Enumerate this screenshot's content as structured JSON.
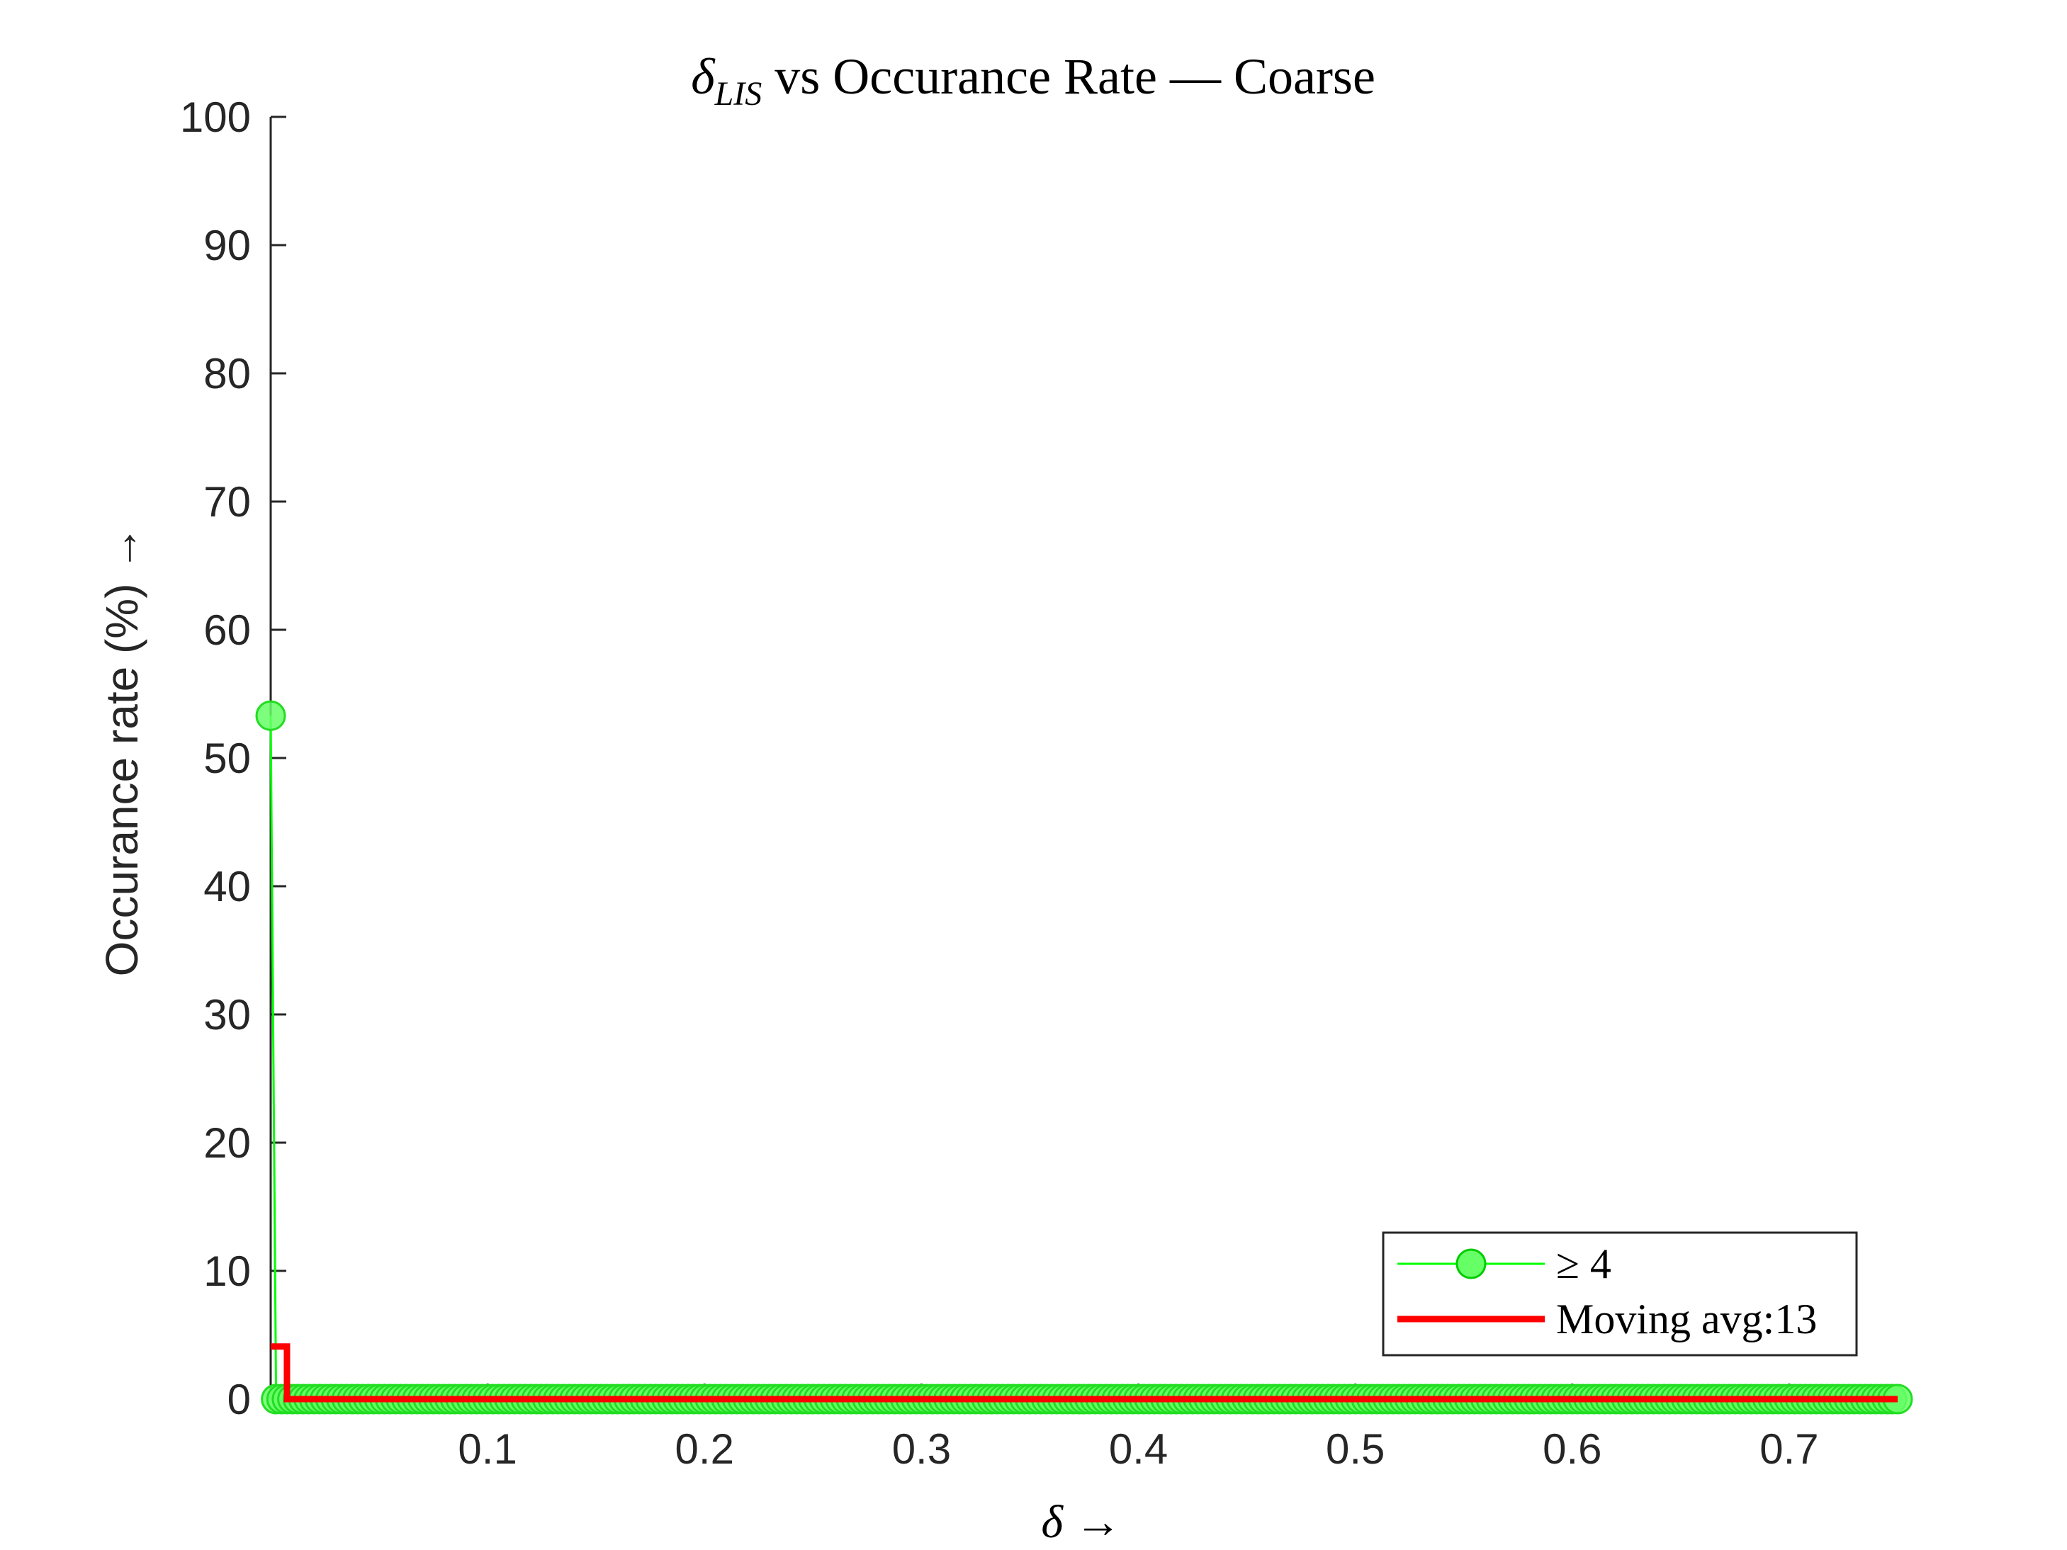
{
  "chart_data": {
    "type": "line",
    "title": {
      "symbol": "δ",
      "subscript": "LIS",
      "rest": " vs Occurance Rate — Coarse"
    },
    "xlabel": "δ →",
    "ylabel": "Occurance rate (%) →",
    "xlim": [
      0,
      0.75
    ],
    "ylim": [
      0,
      100
    ],
    "xticks": [
      0.1,
      0.2,
      0.3,
      0.4,
      0.5,
      0.6,
      0.7
    ],
    "xtick_labels": [
      "0.1",
      "0.2",
      "0.3",
      "0.4",
      "0.5",
      "0.6",
      "0.7"
    ],
    "yticks": [
      0,
      10,
      20,
      30,
      40,
      50,
      60,
      70,
      80,
      90,
      100
    ],
    "ytick_labels": [
      "0",
      "10",
      "20",
      "30",
      "40",
      "50",
      "60",
      "70",
      "80",
      "90",
      "100"
    ],
    "grid": false,
    "legend_placement": "bottom-right",
    "series": [
      {
        "name": "≥ 4",
        "color": "#00ff00",
        "marker_fill": "#66ff66",
        "step": 0.0025,
        "x_start": 0,
        "x_end": 0.75,
        "values_default": 0,
        "nonzero_points": [
          [
            0,
            53.3
          ]
        ]
      },
      {
        "name": "Moving avg:13",
        "color": "#ff0000",
        "points": [
          [
            0,
            4.1
          ],
          [
            0.0075,
            4.1
          ],
          [
            0.0075,
            0
          ],
          [
            0.75,
            0
          ]
        ]
      }
    ]
  }
}
